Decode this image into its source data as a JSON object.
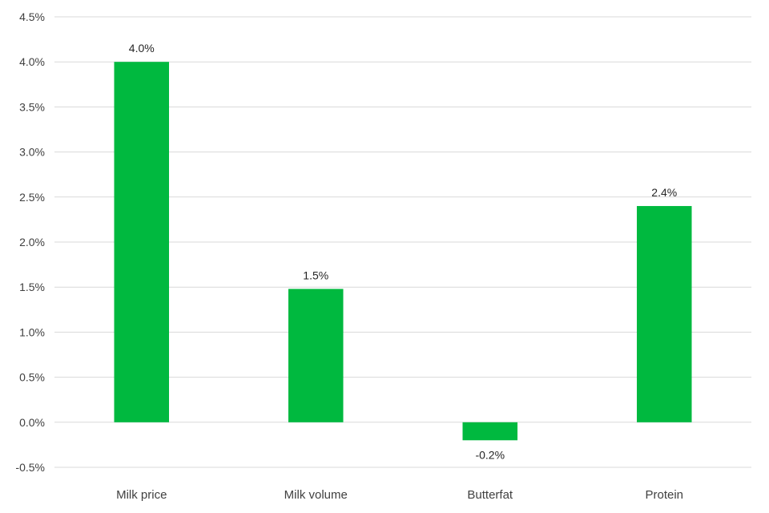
{
  "chart_data": {
    "type": "bar",
    "categories": [
      "Milk price",
      "Milk volume",
      "Butterfat",
      "Protein"
    ],
    "values": [
      4.0,
      1.48,
      -0.2,
      2.4
    ],
    "data_labels": [
      "4.0%",
      "1.5%",
      "-0.2%",
      "2.4%"
    ],
    "ylim": [
      -0.5,
      4.5
    ],
    "yticks": [
      -0.5,
      0.0,
      0.5,
      1.0,
      1.5,
      2.0,
      2.5,
      3.0,
      3.5,
      4.0,
      4.5
    ],
    "ytick_labels": [
      "-0.5%",
      "0.0%",
      "0.5%",
      "1.0%",
      "1.5%",
      "2.0%",
      "2.5%",
      "3.0%",
      "3.5%",
      "4.0%",
      "4.5%"
    ],
    "grid": true,
    "legend": "none",
    "bar_color": "#00b93f"
  }
}
